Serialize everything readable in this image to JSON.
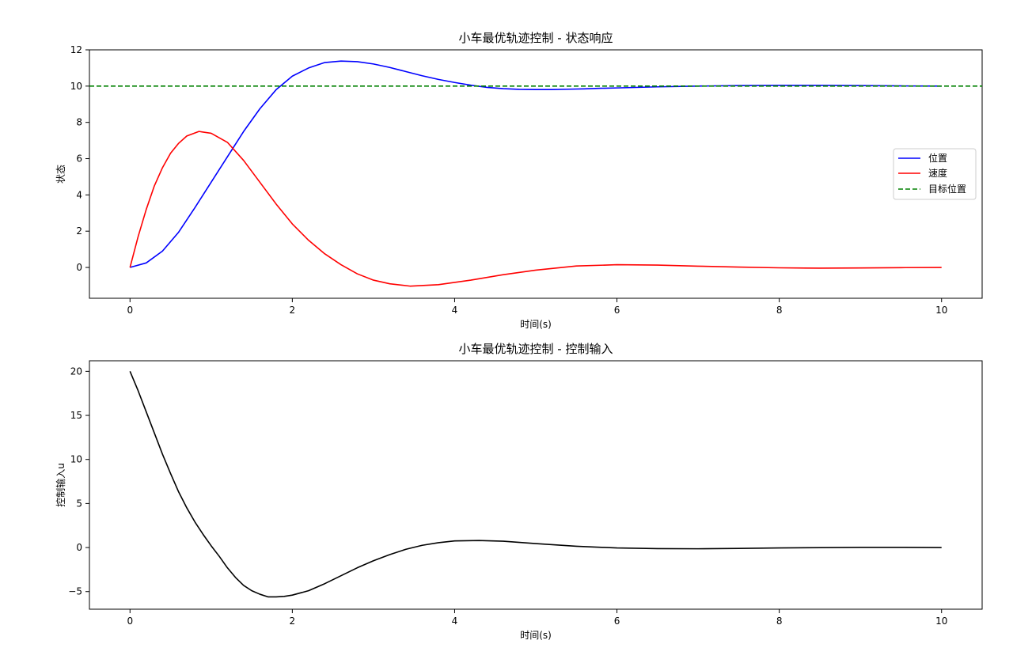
{
  "chart_data": [
    {
      "type": "line",
      "title": "小车最优轨迹控制 - 状态响应",
      "xlabel": "时间(s)",
      "ylabel": "状态",
      "xlim": [
        -0.5,
        10.5
      ],
      "ylim": [
        -1.7,
        12.0
      ],
      "xticks": [
        0,
        2,
        4,
        6,
        8,
        10
      ],
      "yticks": [
        0,
        2,
        4,
        6,
        8,
        10,
        12
      ],
      "grid": false,
      "legend_position": "center-right",
      "series": [
        {
          "name": "位置",
          "color": "#0000ff",
          "style": "solid",
          "x": [
            0,
            0.2,
            0.4,
            0.6,
            0.8,
            1.0,
            1.2,
            1.4,
            1.6,
            1.8,
            2.0,
            2.2,
            2.4,
            2.6,
            2.8,
            3.0,
            3.2,
            3.4,
            3.6,
            3.8,
            4.0,
            4.2,
            4.4,
            4.6,
            4.8,
            5.0,
            5.2,
            5.4,
            5.6,
            5.8,
            6.0,
            6.5,
            7.0,
            7.5,
            8.0,
            8.5,
            9.0,
            9.5,
            10.0
          ],
          "y": [
            0,
            0.25,
            0.9,
            1.95,
            3.3,
            4.7,
            6.1,
            7.5,
            8.75,
            9.8,
            10.55,
            11.0,
            11.3,
            11.38,
            11.35,
            11.22,
            11.03,
            10.8,
            10.57,
            10.37,
            10.2,
            10.05,
            9.93,
            9.86,
            9.82,
            9.81,
            9.81,
            9.83,
            9.85,
            9.88,
            9.9,
            9.96,
            10.0,
            10.03,
            10.04,
            10.04,
            10.03,
            10.01,
            10.0
          ]
        },
        {
          "name": "速度",
          "color": "#ff0000",
          "style": "solid",
          "x": [
            0,
            0.1,
            0.2,
            0.3,
            0.4,
            0.5,
            0.6,
            0.7,
            0.85,
            1.0,
            1.2,
            1.4,
            1.6,
            1.8,
            2.0,
            2.2,
            2.4,
            2.6,
            2.8,
            3.0,
            3.2,
            3.45,
            3.8,
            4.2,
            4.6,
            5.0,
            5.5,
            6.0,
            6.5,
            7.0,
            7.5,
            8.0,
            8.5,
            9.0,
            9.5,
            10.0
          ],
          "y": [
            0,
            1.7,
            3.2,
            4.5,
            5.5,
            6.3,
            6.85,
            7.25,
            7.5,
            7.4,
            6.9,
            5.9,
            4.7,
            3.5,
            2.4,
            1.5,
            0.75,
            0.15,
            -0.35,
            -0.7,
            -0.9,
            -1.03,
            -0.95,
            -0.7,
            -0.4,
            -0.15,
            0.08,
            0.15,
            0.13,
            0.07,
            0.02,
            -0.02,
            -0.04,
            -0.03,
            -0.01,
            0.0
          ]
        },
        {
          "name": "目标位置",
          "color": "#008000",
          "style": "dashed",
          "y_constant": 10
        }
      ]
    },
    {
      "type": "line",
      "title": "小车最优轨迹控制 - 控制输入",
      "xlabel": "时间(s)",
      "ylabel": "控制输入u",
      "xlim": [
        -0.5,
        10.5
      ],
      "ylim": [
        -7.0,
        21.2
      ],
      "xticks": [
        0,
        2,
        4,
        6,
        8,
        10
      ],
      "yticks": [
        -5,
        0,
        5,
        10,
        15,
        20
      ],
      "ytick_labels": [
        "−5",
        "0",
        "5",
        "10",
        "15",
        "20"
      ],
      "grid": false,
      "series": [
        {
          "color": "#000000",
          "style": "solid",
          "x": [
            0,
            0.1,
            0.2,
            0.3,
            0.4,
            0.5,
            0.6,
            0.7,
            0.8,
            0.9,
            1.0,
            1.1,
            1.2,
            1.3,
            1.4,
            1.5,
            1.6,
            1.7,
            1.8,
            1.9,
            2.0,
            2.2,
            2.4,
            2.6,
            2.8,
            3.0,
            3.2,
            3.4,
            3.6,
            3.8,
            4.0,
            4.3,
            4.6,
            5.0,
            5.5,
            6.0,
            6.5,
            7.0,
            7.5,
            8.0,
            8.5,
            9.0,
            9.5,
            10.0
          ],
          "y": [
            20,
            17.8,
            15.4,
            13.0,
            10.6,
            8.4,
            6.3,
            4.5,
            2.9,
            1.5,
            0.2,
            -1.0,
            -2.3,
            -3.4,
            -4.3,
            -4.9,
            -5.3,
            -5.6,
            -5.6,
            -5.55,
            -5.4,
            -4.9,
            -4.1,
            -3.2,
            -2.3,
            -1.5,
            -0.8,
            -0.2,
            0.25,
            0.55,
            0.75,
            0.8,
            0.72,
            0.45,
            0.15,
            -0.05,
            -0.12,
            -0.14,
            -0.1,
            -0.05,
            -0.01,
            0.02,
            0.02,
            0.0
          ]
        }
      ]
    }
  ]
}
